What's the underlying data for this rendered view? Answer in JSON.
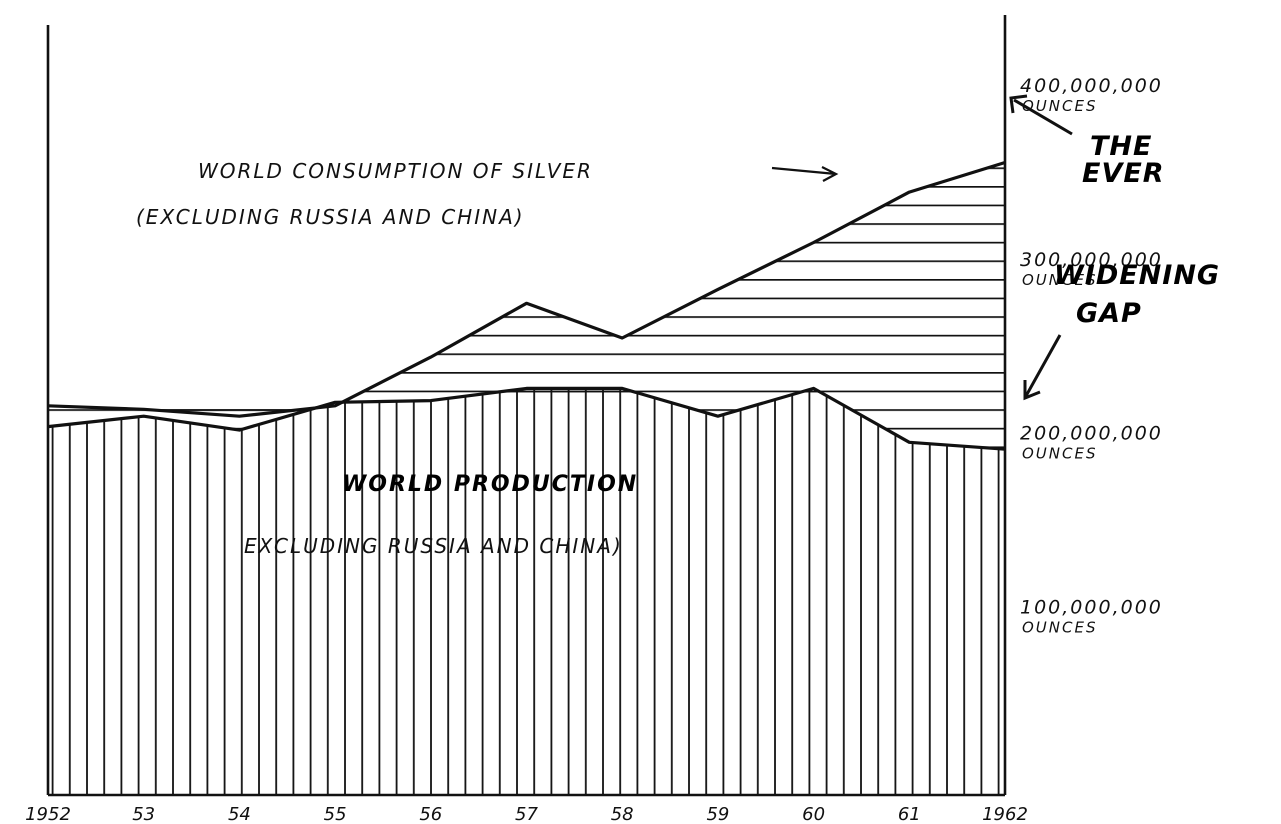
{
  "chart_data": {
    "type": "area",
    "x": [
      1952,
      1953,
      1954,
      1955,
      1956,
      1957,
      1958,
      1959,
      1960,
      1961,
      1962
    ],
    "x_tick_labels": [
      "1952",
      "53",
      "54",
      "55",
      "56",
      "57",
      "58",
      "59",
      "60",
      "61",
      "1962"
    ],
    "series": [
      {
        "name": "WORLD CONSUMPTION OF SILVER",
        "name_line2": "(EXCLUDING RUSSIA AND CHINA)",
        "values": [
          224,
          222,
          218,
          224,
          252,
          283,
          263,
          291,
          318,
          347,
          364
        ],
        "color": "#111111",
        "hatch": "horizontal"
      },
      {
        "name": "WORLD PRODUCTION",
        "name_line2": "EXCLUDING RUSSIA AND CHINA)",
        "values": [
          212,
          218,
          210,
          226,
          227,
          234,
          234,
          218,
          234,
          203,
          199
        ],
        "color": "#111111",
        "hatch": "vertical"
      }
    ],
    "y_tick_labels": [
      {
        "value": 400000000,
        "line1": "400,000,000",
        "line2": "OUNCES"
      },
      {
        "value": 300000000,
        "line1": "300,000,000",
        "line2": "OUNCES"
      },
      {
        "value": 200000000,
        "line1": "200,000,000",
        "line2": "OUNCES"
      },
      {
        "value": 100000000,
        "line1": "100,000,000",
        "line2": "OUNCES"
      }
    ],
    "ylim": [
      0,
      400000000
    ],
    "grid": false,
    "annotations": {
      "right_lines": [
        "THE",
        "EVER",
        "WIDENING",
        "GAP"
      ]
    }
  }
}
